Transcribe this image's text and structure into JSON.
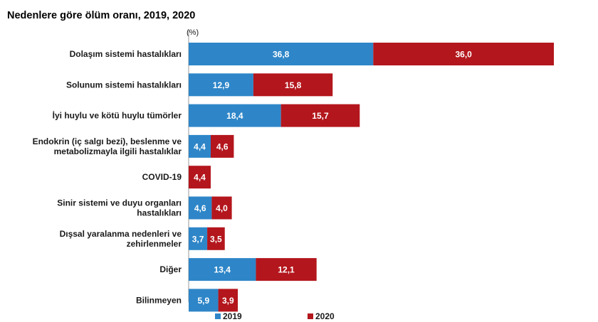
{
  "chart_data": {
    "type": "bar",
    "orientation": "horizontal",
    "stacked": true,
    "title": "Nedenlere göre ölüm oranı, 2019, 2020",
    "unit_label": "(%)",
    "categories": [
      "Dolaşım sistemi hastalıkları",
      "Solunum sistemi hastalıkları",
      "İyi huylu ve kötü huylu tümörler",
      "Endokrin (iç salgı bezi), beslenme ve metabolizmayla ilgili hastalıklar",
      "COVID-19",
      "Sinir sistemi ve duyu organları hastalıkları",
      "Dışsal yaralanma nedenleri ve zehirlenmeler",
      "Diğer",
      "Bilinmeyen"
    ],
    "category_lines": [
      [
        "Dolaşım sistemi hastalıkları"
      ],
      [
        "Solunum sistemi hastalıkları"
      ],
      [
        "İyi huylu ve kötü huylu tümörler"
      ],
      [
        "Endokrin (iç salgı bezi), beslenme ve",
        "metabolizmayla ilgili hastalıklar"
      ],
      [
        "COVID-19"
      ],
      [
        "Sinir sistemi ve duyu organları",
        "hastalıkları"
      ],
      [
        "Dışsal yaralanma nedenleri ve",
        "zehirlenmeler"
      ],
      [
        "Diğer"
      ],
      [
        "Bilinmeyen"
      ]
    ],
    "series": [
      {
        "name": "2019",
        "color": "#2e86c8",
        "values": [
          36.8,
          12.9,
          18.4,
          4.4,
          null,
          4.6,
          3.7,
          13.4,
          5.9
        ],
        "labels": [
          "36,8",
          "12,9",
          "18,4",
          "4,4",
          "",
          "4,6",
          "3,7",
          "13,4",
          "5,9"
        ]
      },
      {
        "name": "2020",
        "color": "#b3161c",
        "values": [
          36.0,
          15.8,
          15.7,
          4.6,
          4.4,
          4.0,
          3.5,
          12.1,
          3.9
        ],
        "labels": [
          "36,0",
          "15,8",
          "15,7",
          "4,6",
          "4,4",
          "4,0",
          "3,5",
          "12,1",
          "3,9"
        ]
      }
    ],
    "xlim": [
      0,
      72.8
    ],
    "grid": false,
    "legend_position": "bottom"
  }
}
